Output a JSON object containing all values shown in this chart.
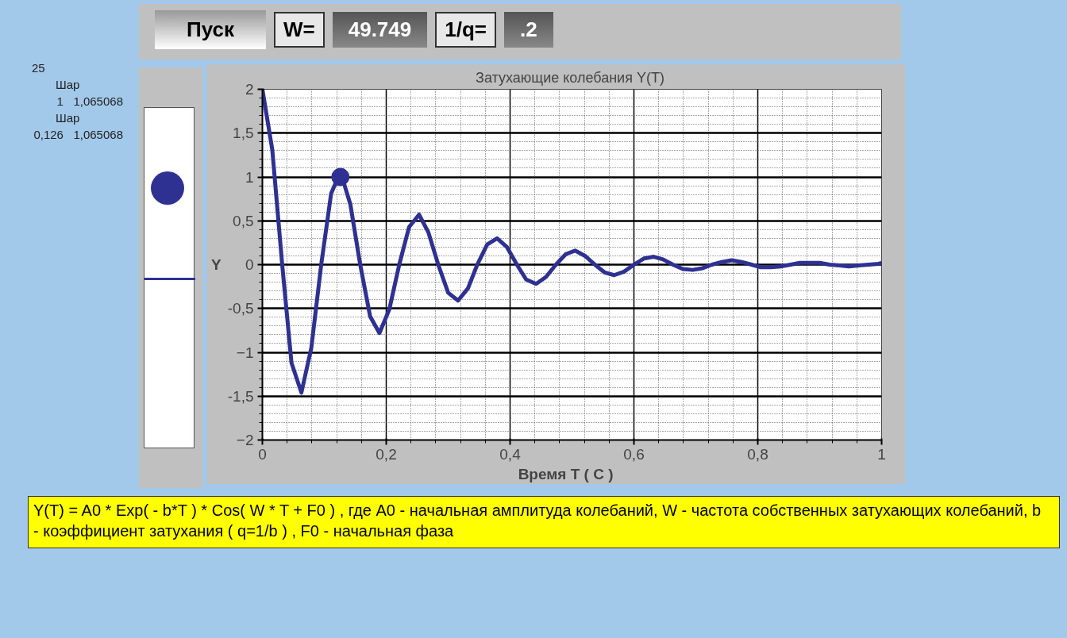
{
  "chart_data": {
    "type": "line",
    "title": "Затухающие колебания  Y(T)",
    "xlabel": "Время   T  ( C )",
    "ylabel": "Y",
    "xlim": [
      0,
      1
    ],
    "ylim": [
      -2,
      2
    ],
    "xticks": [
      0,
      {
        "value": 0.2,
        "label": "0,2"
      },
      {
        "value": 0.4,
        "label": "0,4"
      },
      {
        "value": 0.6,
        "label": "0,6"
      },
      {
        "value": 0.8,
        "label": "0,8"
      },
      1
    ],
    "yticks": [
      -2,
      {
        "value": -1.5,
        "label": "-1,5"
      },
      -1,
      {
        "value": -0.5,
        "label": "-0,5"
      },
      0,
      {
        "value": 0.5,
        "label": "0,5"
      },
      1,
      {
        "value": 1.5,
        "label": "1,5"
      },
      2
    ],
    "grid": true,
    "line_style": "solid",
    "marker": "none",
    "series": [
      {
        "color": "#2e3192",
        "x": [
          0,
          0.016,
          0.032,
          0.047,
          0.063,
          0.079,
          0.095,
          0.111,
          0.126,
          0.142,
          0.158,
          0.174,
          0.189,
          0.205,
          0.221,
          0.237,
          0.253,
          0.268,
          0.284,
          0.3,
          0.316,
          0.332,
          0.347,
          0.363,
          0.379,
          0.395,
          0.411,
          0.426,
          0.442,
          0.458,
          0.474,
          0.49,
          0.505,
          0.521,
          0.537,
          0.553,
          0.568,
          0.584,
          0.6,
          0.616,
          0.632,
          0.647,
          0.663,
          0.679,
          0.695,
          0.711,
          0.726,
          0.742,
          0.758,
          0.774,
          0.79,
          0.805,
          0.821,
          0.837,
          0.853,
          0.868,
          0.884,
          0.9,
          0.916,
          0.932,
          0.947,
          0.963,
          0.979,
          0.995,
          1
        ],
        "values": [
          2,
          1.31,
          0,
          -1.12,
          -1.46,
          -0.95,
          0,
          0.81,
          1.06,
          0.69,
          0,
          -0.59,
          -0.78,
          -0.51,
          0,
          0.43,
          0.57,
          0.37,
          0,
          -0.32,
          -0.41,
          -0.27,
          0,
          0.23,
          0.3,
          0.2,
          0,
          -0.17,
          -0.22,
          -0.14,
          0,
          0.12,
          0.16,
          0.1,
          0,
          -0.09,
          -0.12,
          -0.08,
          0,
          0.07,
          0.09,
          0.06,
          0,
          -0.05,
          -0.06,
          -0.04,
          0,
          0.03,
          0.05,
          0.03,
          0,
          -0.03,
          -0.03,
          -0.02,
          0,
          0.02,
          0.02,
          0.02,
          0,
          -0.01,
          -0.02,
          -0.01,
          0,
          0.01,
          0.02
        ]
      },
      {
        "type": "scatter",
        "marker": "circle",
        "color": "#2e3192",
        "x": [
          0.126
        ],
        "values": [
          1
        ]
      }
    ],
    "annotations": [
      "Пуск",
      "W=",
      "49.749",
      "1/q=",
      ".2",
      "25",
      "Шар",
      "1   1,065068",
      "Шар",
      "0,126   1,065068",
      "Y(T) = A0 * Exp( - b*T ) * Cos( W * T  + F0 ) ,  где  A0 - начальная амплитуда  колебаний,  W - частота собственных затухающих  колебаний,  b - коэффициент затухания   ( q=1/b ) ,  F0 - начальная фаза"
    ]
  }
}
